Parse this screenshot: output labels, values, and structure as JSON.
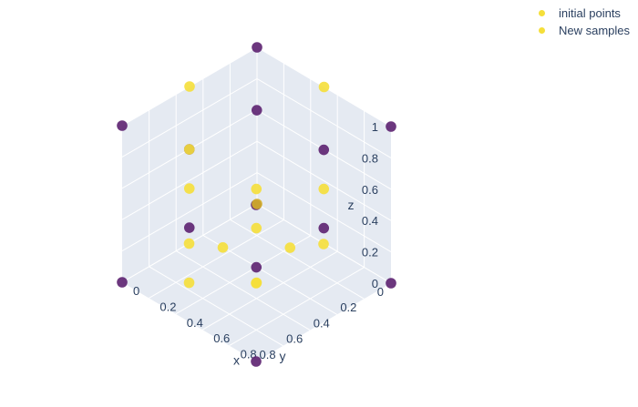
{
  "chart_data": {
    "type": "scatter",
    "colors": {
      "initial": "#5c2170",
      "new": "#f5df3a",
      "center": "#d4ae27",
      "pane": "#e5eaf2",
      "grid": "#ffffff",
      "text": "#2a3f5f"
    },
    "axes": {
      "x": {
        "title": "x",
        "ticks": [
          "0",
          "0.2",
          "0.4",
          "0.6",
          "0.8"
        ],
        "range": [
          0,
          1
        ]
      },
      "y": {
        "title": "y",
        "ticks": [
          "0",
          "0.2",
          "0.4",
          "0.6",
          "0.8"
        ],
        "range": [
          0,
          1
        ]
      },
      "z": {
        "title": "z",
        "ticks": [
          "0",
          "0.2",
          "0.4",
          "0.6",
          "0.8",
          "1"
        ],
        "range": [
          0,
          1
        ]
      }
    },
    "legend": [
      {
        "name": "initial points",
        "color": "#f5df3a"
      },
      {
        "name": "New samples",
        "color": "#f5df3a"
      }
    ],
    "series": [
      {
        "name": "initial points",
        "role": "initial",
        "points": [
          {
            "x": 0,
            "y": 0,
            "z": 1
          },
          {
            "x": 1,
            "y": 0,
            "z": 1
          },
          {
            "x": 0,
            "y": 1,
            "z": 1
          },
          {
            "x": 1,
            "y": 1,
            "z": 1
          },
          {
            "x": 1,
            "y": 0,
            "z": 0
          },
          {
            "x": 0,
            "y": 1,
            "z": 0
          },
          {
            "x": 1,
            "y": 1,
            "z": 0
          },
          {
            "x": 0.25,
            "y": 0.25,
            "z": 0.85
          },
          {
            "x": 0.75,
            "y": 0.25,
            "z": 0.85
          },
          {
            "x": 0.25,
            "y": 0.75,
            "z": 0.85
          },
          {
            "x": 0.75,
            "y": 0.25,
            "z": 0.35
          },
          {
            "x": 0.25,
            "y": 0.75,
            "z": 0.35
          },
          {
            "x": 0.75,
            "y": 0.75,
            "z": 0.35
          }
        ]
      },
      {
        "name": "New samples",
        "role": "new",
        "points": [
          {
            "x": 0,
            "y": 0.5,
            "z": 1
          },
          {
            "x": 0.5,
            "y": 0,
            "z": 1
          },
          {
            "x": 1,
            "y": 0.5,
            "z": 0.5
          },
          {
            "x": 0.5,
            "y": 1,
            "z": 0.5
          },
          {
            "x": 0.5,
            "y": 0.5,
            "z": 0
          },
          {
            "x": 0.25,
            "y": 0.75,
            "z": 0.85
          },
          {
            "x": 0.75,
            "y": 0.75,
            "z": 0.85
          },
          {
            "x": 0.75,
            "y": 0.25,
            "z": 0.6
          },
          {
            "x": 0.25,
            "y": 0.75,
            "z": 0.6
          },
          {
            "x": 0.75,
            "y": 0.75,
            "z": 0.6
          },
          {
            "x": 0.5,
            "y": 0.75,
            "z": 0.35
          },
          {
            "x": 0.75,
            "y": 0.5,
            "z": 0.35
          },
          {
            "x": 0.5,
            "y": 1,
            "z": 0.25
          },
          {
            "x": 1,
            "y": 1,
            "z": 0.5
          }
        ]
      },
      {
        "name": "",
        "role": "center",
        "points": [
          {
            "x": 0,
            "y": 0,
            "z": 0
          }
        ]
      }
    ]
  }
}
